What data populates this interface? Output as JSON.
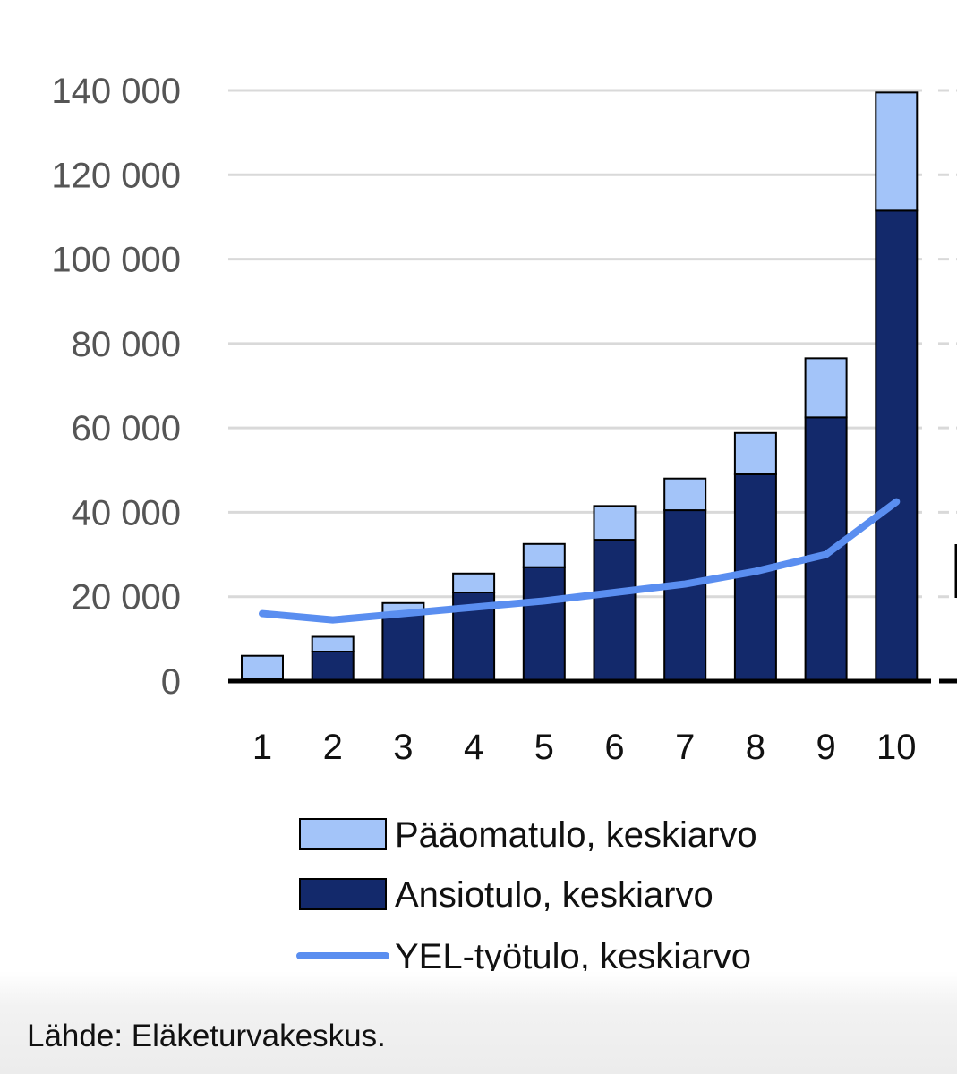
{
  "chart_data": {
    "type": "bar",
    "stacked": true,
    "categories": [
      "1",
      "2",
      "3",
      "4",
      "5",
      "6",
      "7",
      "8",
      "9",
      "10"
    ],
    "series": [
      {
        "name": "Ansiotulo, keskiarvo",
        "kind": "bar",
        "color": "#13296b",
        "values": [
          500,
          7000,
          16000,
          21000,
          27000,
          33500,
          40500,
          49000,
          62500,
          111500
        ]
      },
      {
        "name": "Pääomatulo, keskiarvo",
        "kind": "bar",
        "color": "#a3c4f9",
        "values": [
          5500,
          3500,
          2500,
          4500,
          5500,
          8000,
          7500,
          9800,
          14000,
          28000
        ]
      },
      {
        "name": "YEL-työtulo, keskiarvo",
        "kind": "line",
        "color": "#5a8ef0",
        "values": [
          16000,
          14500,
          16000,
          17500,
          19000,
          21000,
          23000,
          26000,
          30000,
          42500
        ]
      }
    ],
    "yticks": [
      "0",
      "20 000",
      "40 000",
      "60 000",
      "80 000",
      "100 000",
      "120 000",
      "140 000"
    ],
    "ylim": [
      0,
      140000
    ],
    "grid": true,
    "legend": [
      {
        "label": "Pääomatulo, keskiarvo",
        "symbol": "box",
        "color": "#a3c4f9"
      },
      {
        "label": "Ansiotulo, keskiarvo",
        "symbol": "box",
        "color": "#13296b"
      },
      {
        "label": "YEL-työtulo, keskiarvo",
        "symbol": "line",
        "color": "#5a8ef0"
      }
    ],
    "legend_position": "bottom"
  },
  "source": "Lähde: Eläketurvakeskus."
}
